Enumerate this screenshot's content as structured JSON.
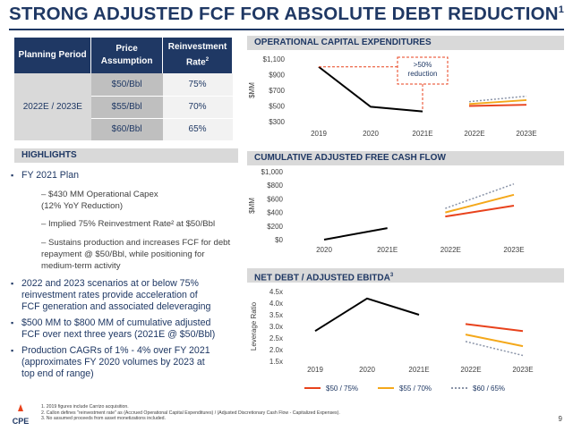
{
  "title": "STRONG ADJUSTED FCF FOR ABSOLUTE DEBT REDUCTION",
  "title_sup": "1",
  "table": {
    "headers": [
      "Planning Period",
      "Price Assumption",
      "Reinvestment Rate"
    ],
    "rate_sup": "2",
    "period": "2022E / 2023E",
    "rows": [
      {
        "price": "$50/Bbl",
        "rate": "75%"
      },
      {
        "price": "$55/Bbl",
        "rate": "70%"
      },
      {
        "price": "$60/Bbl",
        "rate": "65%"
      }
    ]
  },
  "highlights": {
    "header": "HIGHLIGHTS",
    "items": [
      {
        "level": 1,
        "text": "FY 2021 Plan"
      },
      {
        "level": 2,
        "text": "– $430 MM Operational Capex"
      },
      {
        "level": 2,
        "text": "(12% YoY Reduction)"
      },
      {
        "level": 2,
        "text": "– Implied 75% Reinvestment Rate² at $50/Bbl"
      },
      {
        "level": 2,
        "text": "– Sustains production and increases FCF for debt"
      },
      {
        "level": 2,
        "text": "repayment @ $50/Bbl, while positioning for"
      },
      {
        "level": 2,
        "text": "medium-term activity"
      },
      {
        "level": 1,
        "text": "2022 and 2023 scenarios at or below 75%"
      },
      {
        "level": 1,
        "text": "reinvestment rates provide acceleration of"
      },
      {
        "level": 1,
        "text": "FCF generation and associated deleveraging"
      },
      {
        "level": 1,
        "text": "$500 MM to $800 MM of cumulative adjusted"
      },
      {
        "level": 1,
        "text": "FCF over next three years (2021E @ $50/Bbl)"
      },
      {
        "level": 1,
        "text": "Production CAGRs of 1% - 4% over FY 2021"
      },
      {
        "level": 1,
        "text": "(approximates FY 2020 volumes by 2023 at"
      },
      {
        "level": 1,
        "text": "top end of range)"
      }
    ]
  },
  "colors": {
    "navy": "#1f3864",
    "red": "#e8421c",
    "orange": "#f4a81a",
    "gray": "#8a94a8"
  },
  "chart_data": [
    {
      "type": "line",
      "title": "OPERATIONAL CAPITAL EXPENDITURES",
      "ylabel": "$MM",
      "categories": [
        "2019",
        "2020",
        "2021E",
        "2022E",
        "2023E"
      ],
      "ylim": [
        300,
        1100
      ],
      "yticks": [
        "$300",
        "$500",
        "$700",
        "$900",
        "$1,100"
      ],
      "annotation": [
        ">50%",
        "reduction"
      ],
      "history": [
        1000,
        490,
        430
      ],
      "scenarios": [
        {
          "name": "$50 / 75%",
          "values": [
            500,
            515
          ]
        },
        {
          "name": "$55 / 70%",
          "values": [
            525,
            575
          ]
        },
        {
          "name": "$60 / 65%",
          "values": [
            555,
            625
          ]
        }
      ]
    },
    {
      "type": "line",
      "title": "CUMULATIVE ADJUSTED FREE CASH FLOW",
      "ylabel": "$MM",
      "categories": [
        "2020",
        "2021E",
        "2022E",
        "2023E"
      ],
      "ylim": [
        0,
        1000
      ],
      "yticks": [
        "$0",
        "$200",
        "$400",
        "$600",
        "$800",
        "$1,000"
      ],
      "history": [
        0,
        170
      ],
      "scenarios": [
        {
          "name": "$50 / 75%",
          "values": [
            340,
            500
          ]
        },
        {
          "name": "$55 / 70%",
          "values": [
            400,
            660
          ]
        },
        {
          "name": "$60 / 65%",
          "values": [
            460,
            820
          ]
        }
      ]
    },
    {
      "type": "line",
      "title": "NET DEBT / ADJUSTED EBITDA",
      "title_sup": "3",
      "ylabel": "Leverage Ratio",
      "categories": [
        "2019",
        "2020",
        "2021E",
        "2022E",
        "2023E"
      ],
      "ylim": [
        1.5,
        4.5
      ],
      "yticks": [
        "1.5x",
        "2.0x",
        "2.5x",
        "3.0x",
        "3.5x",
        "4.0x",
        "4.5x"
      ],
      "history": [
        2.8,
        4.2,
        3.5
      ],
      "scenarios": [
        {
          "name": "$50 / 75%",
          "values": [
            3.1,
            2.8
          ]
        },
        {
          "name": "$55 / 70%",
          "values": [
            2.65,
            2.15
          ]
        },
        {
          "name": "$60 / 65%",
          "values": [
            2.35,
            1.75
          ]
        }
      ]
    }
  ],
  "legend": [
    "$50 / 75%",
    "$55 / 70%",
    "$60 / 65%"
  ],
  "footnotes": [
    "1.  2019 figures include Carrizo acquisition.",
    "2.  Callon defines \"reinvestment rate\" as (Accrued Operational Capital Expenditures) / (Adjusted Discretionary Cash Flow - Capitalized Expenses).",
    "3.  No assumed proceeds from asset monetizations included."
  ],
  "page_number": "9",
  "logo_text": "CPE"
}
